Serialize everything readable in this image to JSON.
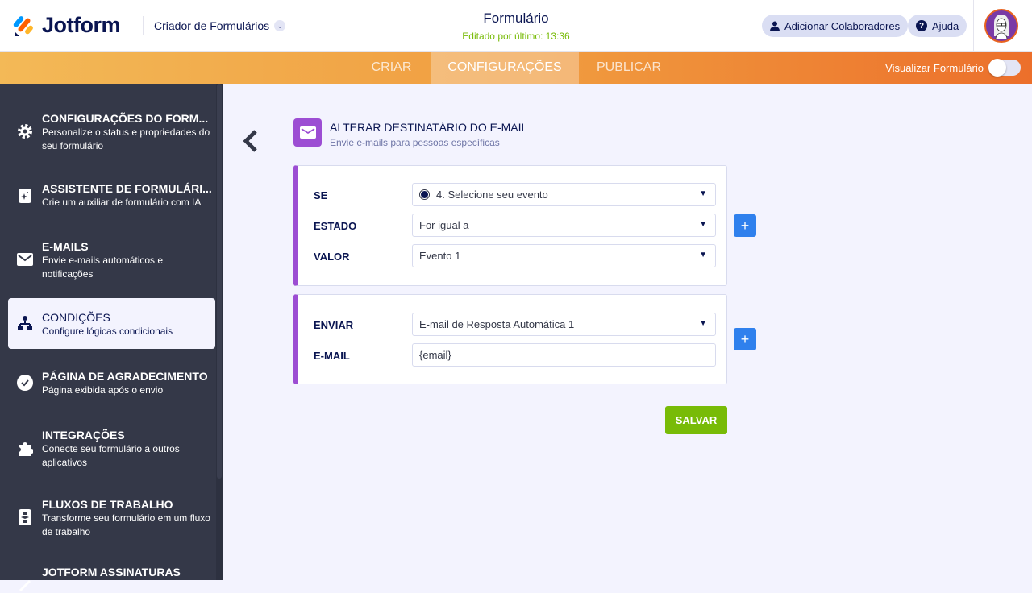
{
  "header": {
    "logo": "Jotform",
    "breadcrumb": "Criador de Formulários",
    "title": "Formulário",
    "edited": "Editado por último: 13:36",
    "add_collaborators": "Adicionar Colaboradores",
    "help": "Ajuda"
  },
  "nav": {
    "tabs": [
      {
        "label": "CRIAR"
      },
      {
        "label": "CONFIGURAÇÕES",
        "active": true
      },
      {
        "label": "PUBLICAR"
      }
    ],
    "preview_label": "Visualizar Formulário",
    "preview_on": false
  },
  "sidebar": {
    "items": [
      {
        "title": "CONFIGURAÇÕES DO FORM...",
        "desc": "Personalize o status e propriedades do seu formulário",
        "icon": "gear-icon"
      },
      {
        "title": "ASSISTENTE DE FORMULÁRI...",
        "desc": "Crie um auxiliar de formulário com IA",
        "icon": "sparkle-icon"
      },
      {
        "title": "E-MAILS",
        "desc": "Envie e-mails automáticos e notificações",
        "icon": "envelope-icon"
      },
      {
        "title": "CONDIÇÕES",
        "desc": "Configure lógicas condicionais",
        "icon": "hierarchy-icon",
        "active": true
      },
      {
        "title": "PÁGINA DE AGRADECIMENTO",
        "desc": "Página exibida após o envio",
        "icon": "check-circle-icon"
      },
      {
        "title": "INTEGRAÇÕES",
        "desc": "Conecte seu formulário a outros aplicativos",
        "icon": "puzzle-icon"
      },
      {
        "title": "FLUXOS DE TRABALHO",
        "desc": "Transforme seu formulário em um fluxo de trabalho",
        "icon": "workflow-icon"
      },
      {
        "title": "JOTFORM ASSINATURAS",
        "desc": "",
        "icon": "signature-icon"
      }
    ]
  },
  "condition": {
    "title": "ALTERAR DESTINATÁRIO DO E-MAIL",
    "subtitle": "Envie e-mails para pessoas específicas",
    "if": {
      "label": "SE",
      "value": "4. Selecione seu evento"
    },
    "state": {
      "label": "ESTADO",
      "value": "For igual a"
    },
    "value": {
      "label": "VALOR",
      "value": "Evento 1"
    },
    "send": {
      "label": "ENVIAR",
      "value": "E-mail de Resposta Automática 1"
    },
    "email": {
      "label": "E-MAIL",
      "value": "{email}"
    },
    "save": "SALVAR"
  },
  "colors": {
    "accent": "#9c4dd3",
    "primary": "#2f80ed",
    "save": "#78bb07",
    "sidebar": "#343848"
  }
}
